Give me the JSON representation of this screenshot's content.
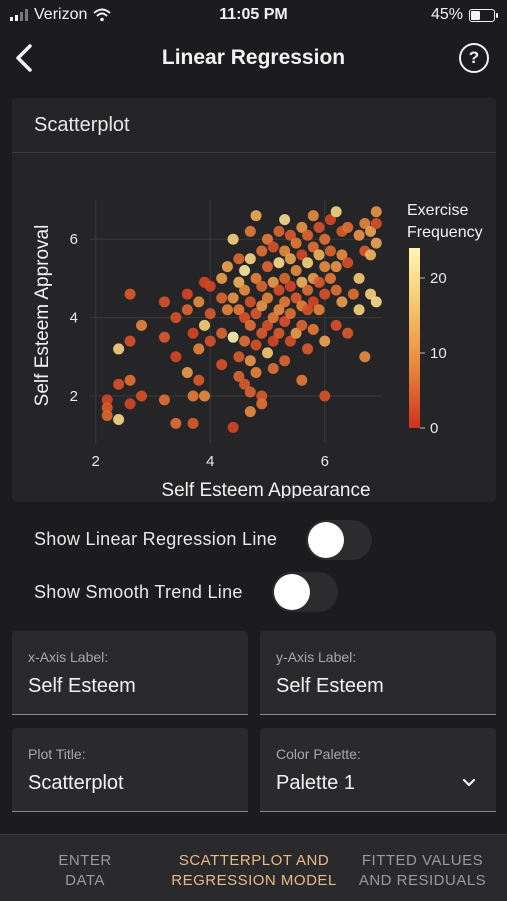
{
  "status": {
    "carrier": "Verizon",
    "time": "11:05 PM",
    "battery": "45%",
    "battery_level": 0.45
  },
  "nav": {
    "title": "Linear Regression",
    "help_label": "?"
  },
  "card": {
    "title": "Scatterplot"
  },
  "chart_data": {
    "type": "scatter",
    "xlabel": "Self Esteem Appearance",
    "ylabel": "Self Esteem Approval",
    "xlim": [
      1.9,
      7.0
    ],
    "ylim": [
      0.8,
      7.0
    ],
    "xticks": [
      2,
      4,
      6
    ],
    "yticks": [
      2,
      4,
      6
    ],
    "grid": true,
    "colorbar": {
      "title": [
        "Exercise",
        "Frequency"
      ],
      "ticks": [
        0,
        10,
        20
      ],
      "range": [
        0,
        24
      ],
      "colors": [
        "#d0311f",
        "#e8853c",
        "#f6c46b",
        "#fff6b2"
      ]
    },
    "points": [
      [
        2.2,
        1.9,
        2
      ],
      [
        2.2,
        1.7,
        4
      ],
      [
        2.2,
        1.5,
        5
      ],
      [
        2.4,
        1.4,
        19
      ],
      [
        2.4,
        2.3,
        3
      ],
      [
        2.4,
        3.2,
        18
      ],
      [
        2.6,
        2.4,
        6
      ],
      [
        2.6,
        1.8,
        2
      ],
      [
        2.6,
        3.4,
        3
      ],
      [
        2.6,
        4.6,
        4
      ],
      [
        2.8,
        2.0,
        3
      ],
      [
        2.8,
        3.8,
        8
      ],
      [
        3.2,
        3.5,
        4
      ],
      [
        3.2,
        1.9,
        6
      ],
      [
        3.2,
        4.4,
        3
      ],
      [
        3.4,
        1.3,
        6
      ],
      [
        3.4,
        4.0,
        3
      ],
      [
        3.4,
        3.0,
        2
      ],
      [
        3.6,
        2.6,
        11
      ],
      [
        3.6,
        4.6,
        2
      ],
      [
        3.6,
        4.2,
        5
      ],
      [
        3.7,
        2.0,
        7
      ],
      [
        3.7,
        3.6,
        2
      ],
      [
        3.7,
        1.3,
        4
      ],
      [
        3.8,
        2.4,
        4
      ],
      [
        3.8,
        4.4,
        9
      ],
      [
        3.8,
        3.2,
        8
      ],
      [
        3.9,
        4.9,
        2
      ],
      [
        3.9,
        3.8,
        18
      ],
      [
        3.9,
        2.0,
        9
      ],
      [
        4.0,
        3.4,
        3
      ],
      [
        4.0,
        4.1,
        4
      ],
      [
        4.0,
        4.8,
        2
      ],
      [
        4.2,
        5.0,
        11
      ],
      [
        4.2,
        4.5,
        5
      ],
      [
        4.2,
        3.6,
        5
      ],
      [
        4.2,
        2.8,
        3
      ],
      [
        4.3,
        5.3,
        12
      ],
      [
        4.3,
        4.2,
        8
      ],
      [
        4.4,
        6.0,
        18
      ],
      [
        4.4,
        4.5,
        10
      ],
      [
        4.4,
        3.5,
        24
      ],
      [
        4.4,
        1.2,
        2
      ],
      [
        4.5,
        5.5,
        5
      ],
      [
        4.5,
        4.9,
        14
      ],
      [
        4.5,
        4.2,
        7
      ],
      [
        4.5,
        3.0,
        4
      ],
      [
        4.5,
        2.5,
        5
      ],
      [
        4.6,
        5.2,
        22
      ],
      [
        4.6,
        4.7,
        9
      ],
      [
        4.6,
        4.0,
        3
      ],
      [
        4.6,
        3.4,
        6
      ],
      [
        4.6,
        2.3,
        4
      ],
      [
        4.7,
        6.2,
        7
      ],
      [
        4.7,
        5.5,
        19
      ],
      [
        4.7,
        4.4,
        3
      ],
      [
        4.7,
        3.8,
        6
      ],
      [
        4.7,
        2.9,
        10
      ],
      [
        4.7,
        2.1,
        5
      ],
      [
        4.7,
        1.6,
        9
      ],
      [
        4.8,
        6.6,
        13
      ],
      [
        4.8,
        5.0,
        8
      ],
      [
        4.8,
        4.1,
        4
      ],
      [
        4.8,
        3.3,
        3
      ],
      [
        4.8,
        2.6,
        8
      ],
      [
        4.9,
        5.7,
        6
      ],
      [
        4.9,
        4.8,
        5
      ],
      [
        4.9,
        4.3,
        10
      ],
      [
        4.9,
        3.6,
        4
      ],
      [
        4.9,
        2.0,
        4
      ],
      [
        4.9,
        1.8,
        6
      ],
      [
        5.0,
        6.0,
        7
      ],
      [
        5.0,
        5.3,
        5
      ],
      [
        5.0,
        4.5,
        8
      ],
      [
        5.0,
        3.8,
        3
      ],
      [
        5.0,
        3.1,
        17
      ],
      [
        5.1,
        5.8,
        3
      ],
      [
        5.1,
        4.9,
        11
      ],
      [
        5.1,
        4.0,
        7
      ],
      [
        5.1,
        3.4,
        2
      ],
      [
        5.1,
        2.7,
        6
      ],
      [
        5.2,
        6.2,
        5
      ],
      [
        5.2,
        5.4,
        20
      ],
      [
        5.2,
        4.7,
        3
      ],
      [
        5.2,
        4.2,
        9
      ],
      [
        5.2,
        3.6,
        4
      ],
      [
        5.3,
        6.5,
        20
      ],
      [
        5.3,
        5.7,
        9
      ],
      [
        5.3,
        5.0,
        5
      ],
      [
        5.3,
        4.4,
        7
      ],
      [
        5.3,
        3.9,
        3
      ],
      [
        5.3,
        2.9,
        5
      ],
      [
        5.4,
        6.1,
        4
      ],
      [
        5.4,
        5.5,
        12
      ],
      [
        5.4,
        4.8,
        2
      ],
      [
        5.4,
        4.1,
        6
      ],
      [
        5.4,
        3.4,
        3
      ],
      [
        5.5,
        5.9,
        7
      ],
      [
        5.5,
        5.2,
        9
      ],
      [
        5.5,
        4.5,
        4
      ],
      [
        5.5,
        3.6,
        11
      ],
      [
        5.6,
        6.3,
        10
      ],
      [
        5.6,
        5.6,
        2
      ],
      [
        5.6,
        4.9,
        14
      ],
      [
        5.6,
        4.3,
        8
      ],
      [
        5.6,
        3.8,
        5
      ],
      [
        5.6,
        2.4,
        7
      ],
      [
        5.7,
        6.1,
        5
      ],
      [
        5.7,
        5.4,
        18
      ],
      [
        5.7,
        4.7,
        6
      ],
      [
        5.7,
        4.2,
        3
      ],
      [
        5.7,
        3.2,
        4
      ],
      [
        5.8,
        6.6,
        9
      ],
      [
        5.8,
        5.8,
        6
      ],
      [
        5.8,
        5.0,
        11
      ],
      [
        5.8,
        4.4,
        2
      ],
      [
        5.8,
        3.7,
        7
      ],
      [
        5.9,
        6.3,
        3
      ],
      [
        5.9,
        5.6,
        14
      ],
      [
        5.9,
        4.9,
        4
      ],
      [
        5.9,
        4.2,
        8
      ],
      [
        6.0,
        6.0,
        6
      ],
      [
        6.0,
        5.3,
        9
      ],
      [
        6.0,
        4.6,
        3
      ],
      [
        6.0,
        3.4,
        12
      ],
      [
        6.0,
        2.0,
        3
      ],
      [
        6.1,
        6.5,
        2
      ],
      [
        6.1,
        5.7,
        5
      ],
      [
        6.1,
        5.0,
        7
      ],
      [
        6.2,
        5.3,
        10
      ],
      [
        6.2,
        4.7,
        6
      ],
      [
        6.2,
        3.8,
        3
      ],
      [
        6.2,
        6.7,
        19
      ],
      [
        6.3,
        6.2,
        4
      ],
      [
        6.3,
        4.4,
        11
      ],
      [
        6.3,
        5.6,
        9
      ],
      [
        6.4,
        6.3,
        6
      ],
      [
        6.4,
        5.4,
        3
      ],
      [
        6.4,
        3.6,
        4
      ],
      [
        6.5,
        4.6,
        6
      ],
      [
        6.6,
        6.1,
        10
      ],
      [
        6.6,
        5.0,
        17
      ],
      [
        6.6,
        4.2,
        18
      ],
      [
        6.7,
        5.7,
        4
      ],
      [
        6.7,
        3.0,
        9
      ],
      [
        6.7,
        6.4,
        8
      ],
      [
        6.8,
        5.6,
        14
      ],
      [
        6.8,
        6.2,
        12
      ],
      [
        6.8,
        4.6,
        18
      ],
      [
        6.9,
        6.4,
        3
      ],
      [
        6.9,
        6.7,
        10
      ],
      [
        6.9,
        5.9,
        12
      ],
      [
        6.9,
        4.4,
        20
      ]
    ]
  },
  "toggles": {
    "regression_label": "Show Linear Regression Line",
    "regression_on": false,
    "smooth_label": "Show Smooth Trend Line",
    "smooth_on": false
  },
  "fields": {
    "x_label": {
      "label": "x-Axis Label:",
      "value": "Self Esteem"
    },
    "y_label": {
      "label": "y-Axis Label:",
      "value": "Self Esteem"
    },
    "plot_title": {
      "label": "Plot Title:",
      "value": "Scatterplot"
    },
    "palette": {
      "label": "Color Palette:",
      "value": "Palette 1"
    }
  },
  "tabs": {
    "enter": [
      "ENTER",
      "DATA"
    ],
    "scatter": [
      "SCATTERPLOT AND",
      "REGRESSION MODEL"
    ],
    "fitted": [
      "FITTED VALUES",
      "AND RESIDUALS"
    ]
  }
}
